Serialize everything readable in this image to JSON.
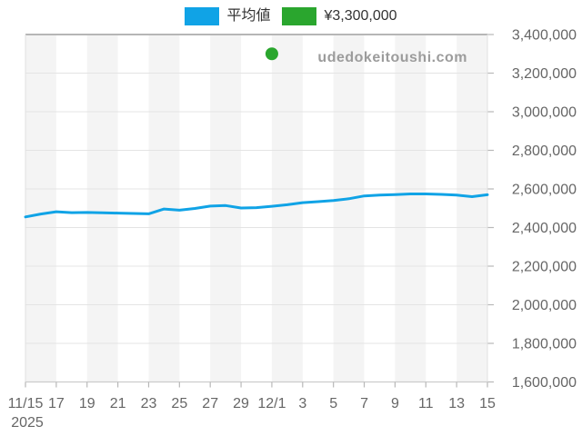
{
  "page": {
    "background": "#ffffff"
  },
  "legend": {
    "items": [
      {
        "name": "average-price",
        "label": "平均値",
        "color": "#10a3e6"
      },
      {
        "name": "listed-price",
        "label": "¥3,300,000",
        "color": "#2aa62e"
      }
    ]
  },
  "watermark": {
    "text": "udedokeitoushi.com",
    "color": "#9c9c9c"
  },
  "chart_data": {
    "type": "line",
    "title": "",
    "xlabel": "",
    "ylabel": "",
    "x": [
      "11/15",
      "11/16",
      "11/17",
      "11/18",
      "11/19",
      "11/20",
      "11/21",
      "11/22",
      "11/23",
      "11/24",
      "11/25",
      "11/26",
      "11/27",
      "11/28",
      "11/29",
      "11/30",
      "12/1",
      "12/2",
      "12/3",
      "12/4",
      "12/5",
      "12/6",
      "12/7",
      "12/8",
      "12/9",
      "12/10",
      "12/11",
      "12/12",
      "12/13",
      "12/14",
      "12/15"
    ],
    "x_tick_labels": [
      "11/15",
      "17",
      "19",
      "21",
      "23",
      "25",
      "27",
      "29",
      "12/1",
      "3",
      "5",
      "7",
      "9",
      "11",
      "13",
      "15"
    ],
    "x_year_label": "2025",
    "series": [
      {
        "name": "平均値",
        "type": "line",
        "color": "#10a3e6",
        "values": [
          2455000,
          2470000,
          2482000,
          2477000,
          2478000,
          2476000,
          2475000,
          2473000,
          2471000,
          2496000,
          2490000,
          2499000,
          2511000,
          2514000,
          2501000,
          2503000,
          2510000,
          2518000,
          2529000,
          2534000,
          2540000,
          2549000,
          2564000,
          2568000,
          2571000,
          2574000,
          2574000,
          2572000,
          2568000,
          2560000,
          2570000
        ]
      },
      {
        "name": "¥3,300,000",
        "type": "scatter",
        "color": "#2aa62e",
        "points": [
          {
            "x": "12/1",
            "value": 3300000
          }
        ]
      }
    ],
    "ylim": [
      1600000,
      3400000
    ],
    "y_tick_step": 200000,
    "y_tick_labels": [
      "1,600,000",
      "1,800,000",
      "2,000,000",
      "2,200,000",
      "2,400,000",
      "2,600,000",
      "2,800,000",
      "3,000,000",
      "3,200,000",
      "3,400,000"
    ],
    "grid": true,
    "stripe_bands": "alternating 2-day vertical bands starting shaded at 11/15",
    "legend_position": "top-center",
    "y_axis_side": "right"
  },
  "style": {
    "stripe_color": "#f4f4f4",
    "grid_color": "#e4e4e4",
    "top_border_color": "#9d9d9d",
    "bottom_axis_color": "#cccccc",
    "side_border_color": "#e0e0e0",
    "tick_color": "#b8b8b8",
    "axis_label_color": "#666666"
  }
}
